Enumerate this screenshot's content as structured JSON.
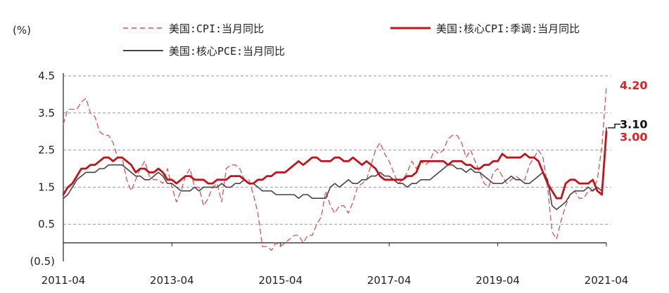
{
  "chart_data": {
    "type": "line",
    "unit_label": "(%)",
    "ylim": [
      -0.5,
      4.5
    ],
    "y_ticks": [
      {
        "value": 4.5,
        "label": "4.5"
      },
      {
        "value": 3.5,
        "label": "3.5"
      },
      {
        "value": 2.5,
        "label": "2.5"
      },
      {
        "value": 1.5,
        "label": "1.5"
      },
      {
        "value": 0.5,
        "label": "0.5"
      },
      {
        "value": -0.5,
        "label": "(0.5)"
      }
    ],
    "x_ticks": [
      "2011-04",
      "2013-04",
      "2015-04",
      "2017-04",
      "2019-04",
      "2021-04"
    ],
    "x_start": "2011-04",
    "x_end": "2021-04",
    "grid": "horizontal-dashed",
    "legend_position": "top",
    "series": [
      {
        "name": "美国:CPI:当月同比",
        "color": "#d9534f",
        "style": "dashed",
        "end_label": "4.20",
        "end_label_color": "#e02020",
        "values": [
          3.2,
          3.6,
          3.6,
          3.6,
          3.8,
          3.9,
          3.5,
          3.4,
          3.0,
          2.9,
          2.9,
          2.7,
          2.3,
          2.3,
          1.7,
          1.4,
          1.7,
          2.0,
          2.2,
          1.8,
          1.7,
          1.7,
          1.6,
          2.0,
          1.5,
          1.1,
          1.4,
          1.8,
          2.0,
          1.5,
          1.5,
          1.0,
          1.2,
          1.5,
          1.6,
          1.1,
          2.0,
          2.1,
          2.1,
          2.0,
          1.7,
          1.7,
          1.3,
          0.8,
          -0.1,
          -0.1,
          -0.2,
          0.0,
          -0.1,
          0.0,
          0.1,
          0.2,
          0.2,
          0.0,
          0.2,
          0.2,
          0.5,
          0.7,
          1.4,
          1.0,
          0.8,
          1.0,
          1.0,
          0.8,
          1.1,
          1.5,
          1.6,
          1.7,
          2.1,
          2.5,
          2.7,
          2.4,
          2.2,
          1.9,
          1.6,
          1.7,
          1.9,
          2.2,
          2.0,
          2.2,
          2.1,
          2.2,
          2.5,
          2.4,
          2.5,
          2.8,
          2.9,
          2.9,
          2.7,
          2.3,
          2.5,
          2.2,
          1.9,
          1.6,
          1.5,
          1.9,
          2.0,
          1.8,
          1.6,
          1.7,
          1.8,
          1.7,
          1.7,
          2.1,
          2.3,
          2.5,
          2.3,
          1.5,
          0.3,
          0.1,
          0.6,
          1.0,
          1.3,
          1.4,
          1.2,
          1.2,
          1.4,
          1.4,
          1.7,
          2.6,
          4.2
        ]
      },
      {
        "name": "美国:核心CPI:季调:当月同比",
        "color": "#c0141a",
        "style": "solid-thick",
        "end_label": "3.00",
        "end_label_color": "#e02020",
        "values": [
          1.3,
          1.5,
          1.6,
          1.8,
          2.0,
          2.0,
          2.1,
          2.1,
          2.2,
          2.3,
          2.3,
          2.2,
          2.3,
          2.3,
          2.2,
          2.1,
          1.9,
          2.0,
          2.0,
          1.9,
          1.9,
          2.0,
          1.9,
          1.7,
          1.7,
          1.6,
          1.7,
          1.8,
          1.8,
          1.7,
          1.7,
          1.7,
          1.6,
          1.6,
          1.7,
          1.7,
          1.7,
          1.8,
          1.8,
          1.8,
          1.7,
          1.6,
          1.6,
          1.7,
          1.7,
          1.8,
          1.8,
          1.9,
          1.9,
          1.9,
          2.0,
          2.1,
          2.2,
          2.1,
          2.2,
          2.3,
          2.3,
          2.2,
          2.2,
          2.2,
          2.3,
          2.3,
          2.2,
          2.2,
          2.3,
          2.2,
          2.1,
          2.2,
          2.1,
          2.0,
          1.8,
          1.7,
          1.7,
          1.7,
          1.7,
          1.7,
          1.8,
          1.8,
          1.9,
          2.2,
          2.2,
          2.2,
          2.2,
          2.2,
          2.2,
          2.1,
          2.2,
          2.2,
          2.2,
          2.1,
          2.1,
          2.0,
          2.0,
          2.1,
          2.1,
          2.2,
          2.2,
          2.4,
          2.3,
          2.3,
          2.3,
          2.3,
          2.4,
          2.3,
          2.3,
          2.2,
          1.9,
          1.6,
          1.4,
          1.2,
          1.2,
          1.6,
          1.7,
          1.7,
          1.6,
          1.6,
          1.6,
          1.7,
          1.4,
          1.3,
          3.0
        ]
      },
      {
        "name": "美国:核心PCE:当月同比",
        "color": "#444444",
        "style": "solid",
        "end_label": "3.10",
        "end_label_color": "#111111",
        "values": [
          1.2,
          1.3,
          1.5,
          1.7,
          1.8,
          1.9,
          1.9,
          1.9,
          2.0,
          2.0,
          2.1,
          2.1,
          2.1,
          2.1,
          2.0,
          1.9,
          1.8,
          1.8,
          1.7,
          1.7,
          1.8,
          1.9,
          1.8,
          1.6,
          1.6,
          1.5,
          1.4,
          1.4,
          1.4,
          1.5,
          1.4,
          1.5,
          1.5,
          1.5,
          1.5,
          1.6,
          1.5,
          1.5,
          1.6,
          1.6,
          1.7,
          1.6,
          1.6,
          1.5,
          1.4,
          1.4,
          1.4,
          1.3,
          1.3,
          1.3,
          1.3,
          1.3,
          1.2,
          1.3,
          1.3,
          1.2,
          1.2,
          1.2,
          1.2,
          1.5,
          1.6,
          1.5,
          1.6,
          1.7,
          1.6,
          1.6,
          1.7,
          1.7,
          1.8,
          1.8,
          1.9,
          1.8,
          1.8,
          1.7,
          1.6,
          1.6,
          1.5,
          1.6,
          1.6,
          1.7,
          1.7,
          1.7,
          1.8,
          1.9,
          2.0,
          2.1,
          2.1,
          2.0,
          2.0,
          1.9,
          2.0,
          1.9,
          1.9,
          1.8,
          1.7,
          1.6,
          1.6,
          1.6,
          1.7,
          1.8,
          1.7,
          1.7,
          1.6,
          1.6,
          1.7,
          1.8,
          1.9,
          1.7,
          1.0,
          0.9,
          1.0,
          1.1,
          1.3,
          1.4,
          1.4,
          1.4,
          1.5,
          1.4,
          1.5,
          1.4,
          3.1
        ]
      }
    ]
  }
}
